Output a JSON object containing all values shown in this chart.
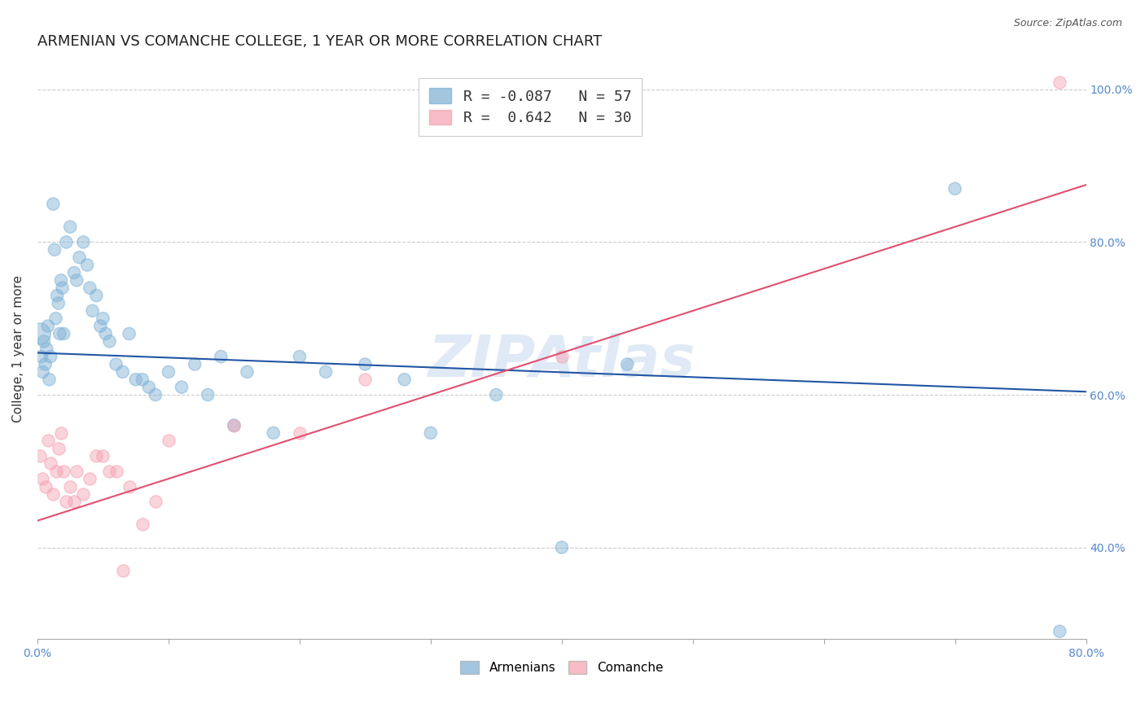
{
  "title": "ARMENIAN VS COMANCHE COLLEGE, 1 YEAR OR MORE CORRELATION CHART",
  "source": "Source: ZipAtlas.com",
  "xlabel": "",
  "ylabel": "College, 1 year or more",
  "xlim": [
    0.0,
    0.8
  ],
  "ylim": [
    0.28,
    1.04
  ],
  "yticks": [
    0.4,
    0.6,
    0.8,
    1.0
  ],
  "ytick_labels": [
    "40.0%",
    "60.0%",
    "80.0%",
    "100.0%"
  ],
  "xticks": [
    0.0,
    0.1,
    0.2,
    0.3,
    0.4,
    0.5,
    0.6,
    0.7,
    0.8
  ],
  "xtick_labels": [
    "0.0%",
    "",
    "",
    "",
    "",
    "",
    "",
    "",
    "80.0%"
  ],
  "blue_color": "#7bafd4",
  "pink_color": "#f4a0b0",
  "blue_line_color": "#2255a4",
  "pink_line_color": "#e05070",
  "blue_r": -0.087,
  "blue_n": 57,
  "pink_r": 0.642,
  "pink_n": 30,
  "legend_label_blue": "Armenians",
  "legend_label_pink": "Comanche",
  "watermark": "ZIPAtlas",
  "blue_scatter_x": [
    0.002,
    0.003,
    0.004,
    0.005,
    0.006,
    0.007,
    0.008,
    0.009,
    0.01,
    0.012,
    0.013,
    0.014,
    0.015,
    0.016,
    0.017,
    0.018,
    0.019,
    0.02,
    0.022,
    0.025,
    0.028,
    0.03,
    0.032,
    0.035,
    0.038,
    0.04,
    0.042,
    0.045,
    0.048,
    0.05,
    0.052,
    0.055,
    0.06,
    0.065,
    0.07,
    0.075,
    0.08,
    0.085,
    0.09,
    0.1,
    0.11,
    0.12,
    0.13,
    0.14,
    0.15,
    0.16,
    0.18,
    0.2,
    0.22,
    0.25,
    0.28,
    0.3,
    0.35,
    0.4,
    0.45,
    0.7,
    0.78
  ],
  "blue_scatter_y": [
    0.68,
    0.65,
    0.63,
    0.67,
    0.64,
    0.66,
    0.69,
    0.62,
    0.65,
    0.85,
    0.79,
    0.7,
    0.73,
    0.72,
    0.68,
    0.75,
    0.74,
    0.68,
    0.8,
    0.82,
    0.76,
    0.75,
    0.78,
    0.8,
    0.77,
    0.74,
    0.71,
    0.73,
    0.69,
    0.7,
    0.68,
    0.67,
    0.64,
    0.63,
    0.68,
    0.62,
    0.62,
    0.61,
    0.6,
    0.63,
    0.61,
    0.64,
    0.6,
    0.65,
    0.56,
    0.63,
    0.55,
    0.65,
    0.63,
    0.64,
    0.62,
    0.55,
    0.6,
    0.4,
    0.64,
    0.87,
    0.29
  ],
  "pink_scatter_x": [
    0.002,
    0.004,
    0.006,
    0.008,
    0.01,
    0.012,
    0.014,
    0.016,
    0.018,
    0.02,
    0.022,
    0.025,
    0.028,
    0.03,
    0.035,
    0.04,
    0.045,
    0.05,
    0.055,
    0.06,
    0.065,
    0.07,
    0.08,
    0.09,
    0.1,
    0.15,
    0.2,
    0.25,
    0.4,
    0.78
  ],
  "pink_scatter_y": [
    0.52,
    0.49,
    0.48,
    0.54,
    0.51,
    0.47,
    0.5,
    0.53,
    0.55,
    0.5,
    0.46,
    0.48,
    0.46,
    0.5,
    0.47,
    0.49,
    0.52,
    0.52,
    0.5,
    0.5,
    0.37,
    0.48,
    0.43,
    0.46,
    0.54,
    0.56,
    0.55,
    0.62,
    0.65,
    1.01
  ],
  "blue_line_x": [
    0.0,
    0.8
  ],
  "blue_line_y": [
    0.655,
    0.604
  ],
  "pink_line_x": [
    0.0,
    0.8
  ],
  "pink_line_y": [
    0.435,
    0.875
  ],
  "right_axis_color": "#5588cc",
  "title_fontsize": 13,
  "axis_label_fontsize": 11,
  "tick_fontsize": 10,
  "legend_fontsize": 13,
  "marker_size": 120,
  "marker_alpha": 0.45,
  "marker_lw": 1.2
}
